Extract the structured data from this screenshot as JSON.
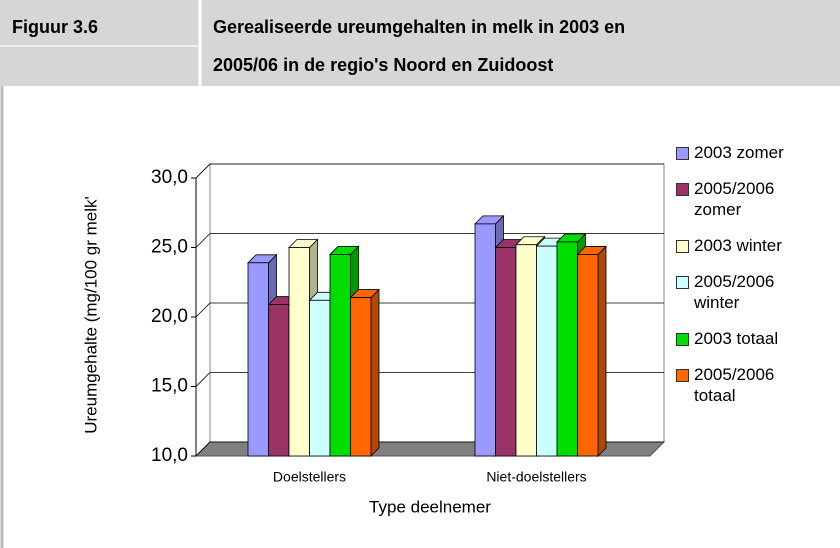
{
  "figure": {
    "label": "Figuur 3.6",
    "title_lines": [
      "Gerealiseerde ureumgehalten in melk in 2003 en",
      "2005/06 in de regio's Noord en Zuidoost"
    ]
  },
  "chart_data": {
    "type": "bar3d",
    "x_label": "Type deelnemer",
    "y_label": "Ureumgehalte (mg/100 gr melk'",
    "categories": [
      "Doelstellers",
      "Niet-doelstellers"
    ],
    "series": [
      {
        "name": "2003 zomer",
        "color": "#9999ff",
        "values": [
          23.9,
          26.7
        ]
      },
      {
        "name": "2005/2006 zomer",
        "color": "#993366",
        "values": [
          20.9,
          25.0
        ]
      },
      {
        "name": "2003 winter",
        "color": "#ffffcc",
        "values": [
          25.0,
          25.2
        ]
      },
      {
        "name": "2005/2006 winter",
        "color": "#ccffff",
        "values": [
          21.2,
          25.1
        ]
      },
      {
        "name": "2003 totaal",
        "color": "#00dd00",
        "values": [
          24.5,
          25.4
        ]
      },
      {
        "name": "2005/2006 totaal",
        "color": "#ff6600",
        "values": [
          21.4,
          24.5
        ]
      }
    ],
    "ylim": [
      10,
      30
    ],
    "yticks": [
      {
        "value": 10,
        "label": "10,0"
      },
      {
        "value": 15,
        "label": "15,0"
      },
      {
        "value": 20,
        "label": "20,0"
      },
      {
        "value": 25,
        "label": "25,0"
      },
      {
        "value": 30,
        "label": "30,0"
      }
    ],
    "grid": true
  }
}
